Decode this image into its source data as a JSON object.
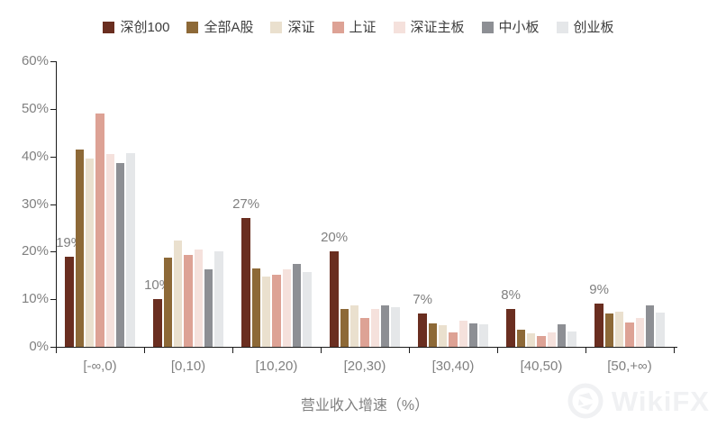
{
  "chart_data": {
    "type": "bar",
    "title": "",
    "xlabel": "营业收入增速（%）",
    "ylabel": "",
    "categories": [
      "[-∞,0)",
      "[0,10)",
      "[10,20)",
      "[20,30)",
      "[30,40)",
      "[40,50)",
      "[50,+∞)"
    ],
    "series": [
      {
        "name": "深创100",
        "color": "#6A2E20",
        "values": [
          19,
          10,
          27,
          20,
          7,
          8,
          9
        ],
        "data_labels": [
          "19%",
          "10%",
          "27%",
          "20%",
          "7%",
          "8%",
          "9%"
        ]
      },
      {
        "name": "全部A股",
        "color": "#8D6937",
        "values": [
          41.5,
          18.8,
          16.5,
          8,
          5,
          3.6,
          7
        ]
      },
      {
        "name": "深证",
        "color": "#EAE0CE",
        "values": [
          39.5,
          22.4,
          14.8,
          8.7,
          4.5,
          2.8,
          7.4
        ]
      },
      {
        "name": "上证",
        "color": "#DDA295",
        "values": [
          49,
          19.3,
          15.1,
          6,
          3,
          2.3,
          5.2
        ]
      },
      {
        "name": "深证主板",
        "color": "#F5E1DC",
        "values": [
          40.5,
          20.4,
          16.2,
          8,
          5.5,
          3,
          6.1
        ]
      },
      {
        "name": "中小板",
        "color": "#8D8F94",
        "values": [
          38.7,
          16.3,
          17.4,
          8.7,
          5,
          4.8,
          8.8
        ]
      },
      {
        "name": "创业板",
        "color": "#E5E7E9",
        "values": [
          40.6,
          20.1,
          15.7,
          8.3,
          4.7,
          3.2,
          7.2
        ]
      }
    ],
    "ylim": [
      0,
      60
    ],
    "ytick_step": 10,
    "ytick_labels": [
      "0%",
      "10%",
      "20%",
      "30%",
      "40%",
      "50%",
      "60%"
    ],
    "grid": false,
    "legend_position": "top",
    "axis_color": "#1a1a1a",
    "tick_text_color": "#808080",
    "legend_text_color": "#3d3d3d"
  },
  "watermark": {
    "text": "WikiFX"
  }
}
